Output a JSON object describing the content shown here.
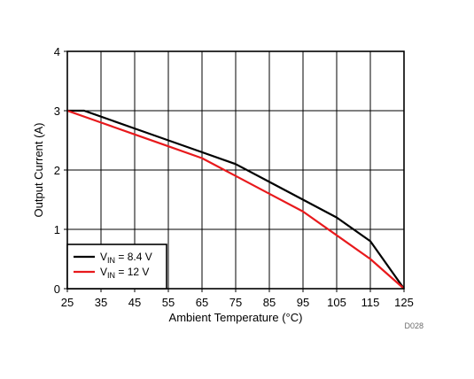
{
  "chart_data": {
    "type": "line",
    "xlabel": "Ambient Temperature (°C)",
    "ylabel": "Output Current (A)",
    "xlim": [
      25,
      125
    ],
    "ylim": [
      0,
      4
    ],
    "xticks": [
      25,
      35,
      45,
      55,
      65,
      75,
      85,
      95,
      105,
      115,
      125
    ],
    "yticks": [
      0,
      1,
      2,
      3,
      4
    ],
    "grid": true,
    "legend_position": "bottom-left",
    "figure_code": "D028",
    "series": [
      {
        "name_base": "V",
        "name_sub": "IN",
        "name_rest": " = 8.4 V",
        "color": "#000000",
        "x": [
          25,
          30,
          45,
          55,
          65,
          75,
          85,
          95,
          105,
          115,
          125
        ],
        "y": [
          3.0,
          3.0,
          2.7,
          2.5,
          2.3,
          2.1,
          1.8,
          1.5,
          1.2,
          0.8,
          0.0
        ]
      },
      {
        "name_base": "V",
        "name_sub": "IN",
        "name_rest": " = 12 V",
        "color": "#e8191c",
        "x": [
          25,
          35,
          45,
          55,
          65,
          75,
          85,
          95,
          105,
          115,
          125
        ],
        "y": [
          3.0,
          2.8,
          2.6,
          2.4,
          2.2,
          1.9,
          1.6,
          1.3,
          0.9,
          0.5,
          0.0
        ]
      }
    ]
  }
}
